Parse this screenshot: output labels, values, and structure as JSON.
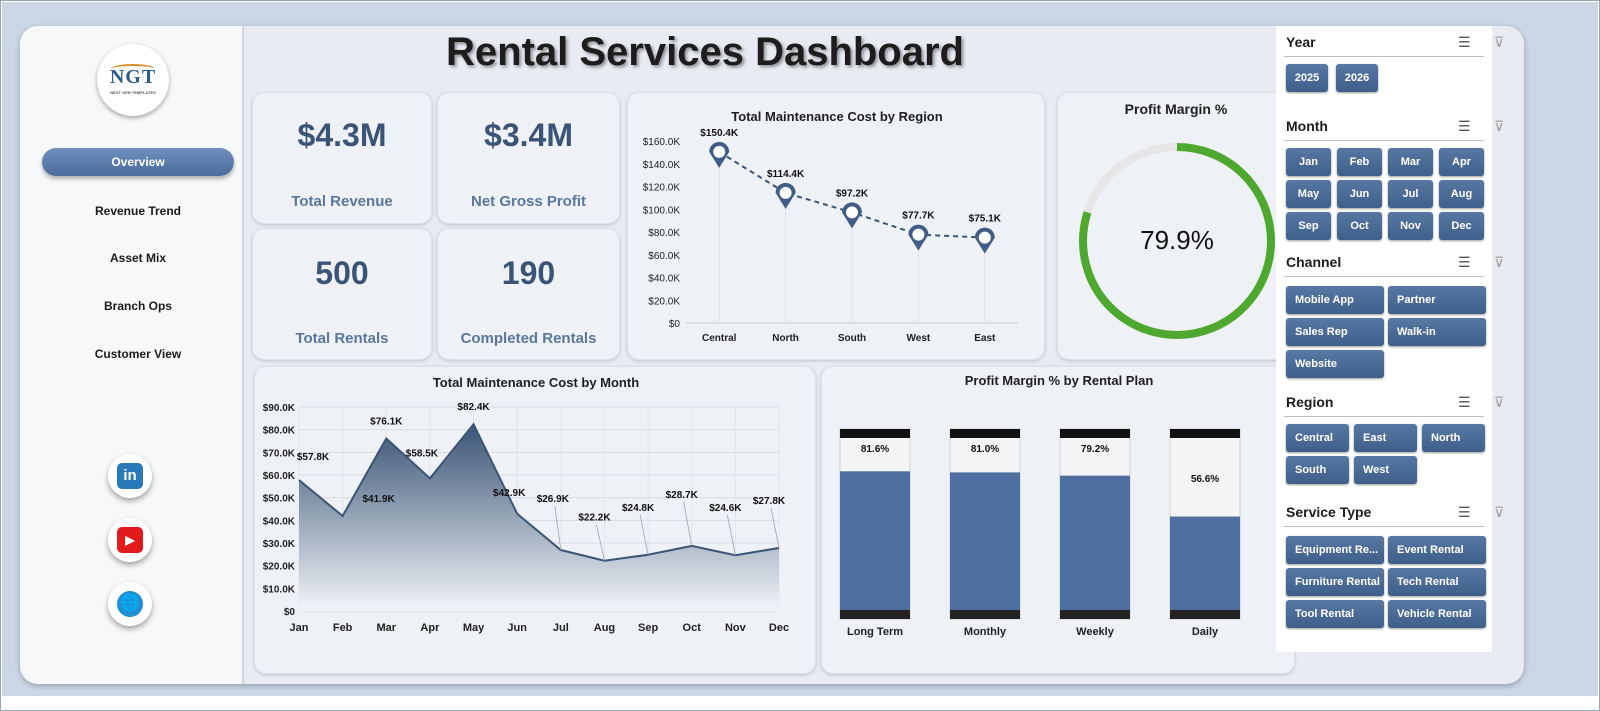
{
  "dashboard_title": "Rental Services Dashboard",
  "logo": {
    "text": "NGT",
    "subtext": "NEXT GEN TEMPLATES"
  },
  "nav": {
    "items": [
      {
        "label": "Overview",
        "active": true
      },
      {
        "label": "Revenue Trend",
        "active": false
      },
      {
        "label": "Asset Mix",
        "active": false
      },
      {
        "label": "Branch Ops",
        "active": false
      },
      {
        "label": "Customer View",
        "active": false
      }
    ]
  },
  "social": {
    "linkedin": "in",
    "youtube": "▶",
    "web": "🌐"
  },
  "kpis": {
    "total_revenue": {
      "value": "$4.3M",
      "label": "Total Revenue"
    },
    "net_gross_profit": {
      "value": "$3.4M",
      "label": "Net Gross Profit"
    },
    "total_rentals": {
      "value": "500",
      "label": "Total Rentals"
    },
    "completed_rentals": {
      "value": "190",
      "label": "Completed Rentals"
    }
  },
  "profit_margin": {
    "title": "Profit Margin %",
    "value_label": "79.9%",
    "value": 0.799,
    "ring_color": "#4ea72e",
    "track_color": "#e6e6e6"
  },
  "chart_data": [
    {
      "type": "line",
      "title": "Total Maintenance Cost by Region",
      "categories": [
        "Central",
        "North",
        "South",
        "West",
        "East"
      ],
      "values": [
        150.4,
        114.4,
        97.2,
        77.7,
        75.1
      ],
      "data_labels": [
        "$150.4K",
        "$114.4K",
        "$97.2K",
        "$77.7K",
        "$75.1K"
      ],
      "yticks": [
        "$0",
        "$20.0K",
        "$40.0K",
        "$60.0K",
        "$80.0K",
        "$100.0K",
        "$120.0K",
        "$140.0K",
        "$160.0K"
      ],
      "ylim": [
        0,
        160
      ],
      "grid": false
    },
    {
      "type": "area",
      "title": "Total Maintenance Cost by Month",
      "categories": [
        "Jan",
        "Feb",
        "Mar",
        "Apr",
        "May",
        "Jun",
        "Jul",
        "Aug",
        "Sep",
        "Oct",
        "Nov",
        "Dec"
      ],
      "values": [
        57.8,
        41.9,
        76.1,
        58.5,
        82.4,
        42.9,
        26.9,
        22.2,
        24.8,
        28.7,
        24.6,
        27.8
      ],
      "data_labels": [
        "$57.8K",
        "$41.9K",
        "$76.1K",
        "$58.5K",
        "$82.4K",
        "$42.9K",
        "$26.9K",
        "$22.2K",
        "$24.8K",
        "$28.7K",
        "$24.6K",
        "$27.8K"
      ],
      "yticks": [
        "$0",
        "$10.0K",
        "$20.0K",
        "$30.0K",
        "$40.0K",
        "$50.0K",
        "$60.0K",
        "$70.0K",
        "$80.0K",
        "$90.0K"
      ],
      "ylim": [
        0,
        90
      ],
      "grid": true
    },
    {
      "type": "bar",
      "title": "Profit Margin % by Rental Plan",
      "categories": [
        "Long Term",
        "Monthly",
        "Weekly",
        "Daily"
      ],
      "values": [
        81.6,
        81.0,
        79.2,
        56.6
      ],
      "data_labels": [
        "81.6%",
        "81.0%",
        "79.2%",
        "56.6%"
      ],
      "ylim": [
        0,
        100
      ]
    }
  ],
  "slicers": {
    "year": {
      "title": "Year",
      "items": [
        "2025",
        "2026"
      ]
    },
    "month": {
      "title": "Month",
      "items": [
        "Jan",
        "Feb",
        "Mar",
        "Apr",
        "May",
        "Jun",
        "Jul",
        "Aug",
        "Sep",
        "Oct",
        "Nov",
        "Dec"
      ]
    },
    "channel": {
      "title": "Channel",
      "items": [
        "Mobile App",
        "Partner",
        "Sales Rep",
        "Walk-in",
        "Website"
      ]
    },
    "region": {
      "title": "Region",
      "items": [
        "Central",
        "East",
        "North",
        "South",
        "West"
      ]
    },
    "service_type": {
      "title": "Service Type",
      "items": [
        "Equipment Re...",
        "Event Rental",
        "Furniture Rental",
        "Tech Rental",
        "Tool Rental",
        "Vehicle Rental"
      ]
    }
  },
  "colors": {
    "accent": "#4a6b9a",
    "bar_fill": "#4f6fa0",
    "line": "#3a5677"
  }
}
